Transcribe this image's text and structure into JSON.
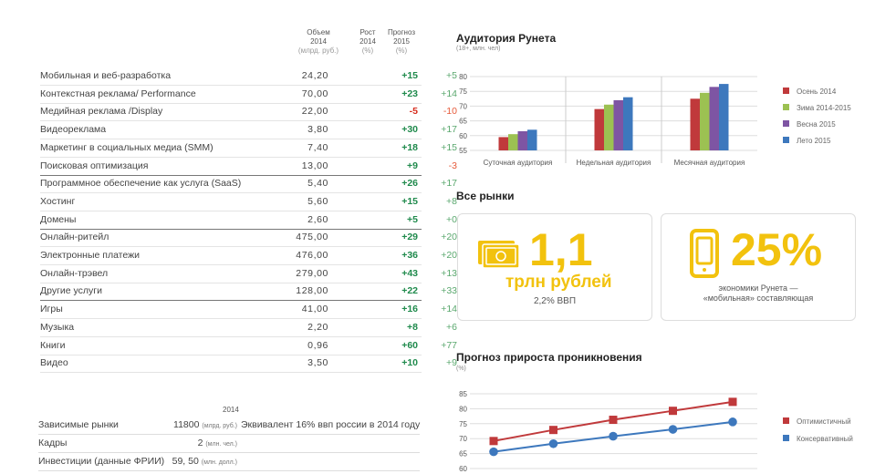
{
  "table": {
    "headers": {
      "volume": [
        "Объем",
        "2014",
        "(млрд. руб.)"
      ],
      "growth": [
        "Рост",
        "2014",
        "(%)"
      ],
      "forecast": [
        "Прогноз",
        "2015",
        "(%)"
      ]
    },
    "rows": [
      {
        "name": "Мобильная и веб-разработка",
        "volume": "24,20",
        "growth": "+15",
        "forecast": "+5",
        "sep": false
      },
      {
        "name": "Контекстная реклама/ Performance",
        "volume": "70,00",
        "growth": "+23",
        "forecast": "+14",
        "sep": false
      },
      {
        "name": "Медийная реклама /Display",
        "volume": "22,00",
        "growth": "-5",
        "forecast": "-10",
        "sep": false
      },
      {
        "name": "Видеореклама",
        "volume": "3,80",
        "growth": "+30",
        "forecast": "+17",
        "sep": false
      },
      {
        "name": "Маркетинг в социальных медиа (SMM)",
        "volume": "7,40",
        "growth": "+18",
        "forecast": "+15",
        "sep": false
      },
      {
        "name": "Поисковая оптимизация",
        "volume": "13,00",
        "growth": "+9",
        "forecast": "-3",
        "sep": true
      },
      {
        "name": "Программное обеспечение как услуга (SaaS)",
        "volume": "5,40",
        "growth": "+26",
        "forecast": "+17",
        "sep": false
      },
      {
        "name": "Хостинг",
        "volume": "5,60",
        "growth": "+15",
        "forecast": "+8",
        "sep": false
      },
      {
        "name": "Домены",
        "volume": "2,60",
        "growth": "+5",
        "forecast": "+0",
        "sep": true
      },
      {
        "name": "Онлайн-ритейл",
        "volume": "475,00",
        "growth": "+29",
        "forecast": "+20",
        "sep": false
      },
      {
        "name": "Электронные платежи",
        "volume": "476,00",
        "growth": "+36",
        "forecast": "+20",
        "sep": false
      },
      {
        "name": "Онлайн-трэвел",
        "volume": "279,00",
        "growth": "+43",
        "forecast": "+13",
        "sep": false
      },
      {
        "name": "Другие услуги",
        "volume": "128,00",
        "growth": "+22",
        "forecast": "+33",
        "sep": true
      },
      {
        "name": "Игры",
        "volume": "41,00",
        "growth": "+16",
        "forecast": "+14",
        "sep": false
      },
      {
        "name": "Музыка",
        "volume": "2,20",
        "growth": "+8",
        "forecast": "+6",
        "sep": false
      },
      {
        "name": "Книги",
        "volume": "0,96",
        "growth": "+60",
        "forecast": "+77",
        "sep": false
      },
      {
        "name": "Видео",
        "volume": "3,50",
        "growth": "+10",
        "forecast": "+9",
        "sep": false
      }
    ]
  },
  "bottom": {
    "year": "2014",
    "rows": [
      {
        "name": "Зависимые рынки",
        "value": "11800",
        "unit": "(млрд. руб.)",
        "note": "Эквивалент 16% ввп россии в 2014 году"
      },
      {
        "name": "Кадры",
        "value": "2",
        "unit": "(млн. чел.)",
        "note": ""
      },
      {
        "name": "Инвестиции (данные ФРИИ)",
        "value": "59, 50",
        "unit": "(млн. долл.)",
        "note": ""
      }
    ]
  },
  "audience": {
    "title": "Аудитория Рунета",
    "subtitle": "(18+, млн. чел)"
  },
  "markets": {
    "title": "Все рынки",
    "card1": {
      "big": "1,1",
      "mid": "трлн рублей",
      "small": "2,2% ВВП",
      "icon": "money-icon"
    },
    "card2": {
      "big": "25%",
      "line1": "экономики Рунета —",
      "line2": "«мобильная» составляющая",
      "icon": "smartphone-icon"
    }
  },
  "penetration": {
    "title": "Прогноз прироста проникновения",
    "subtitle": "(%)"
  },
  "chart_data": [
    {
      "type": "bar",
      "categories": [
        "Суточная аудитория",
        "Недельная аудитория",
        "Месячная аудитория"
      ],
      "ylim": [
        55,
        80
      ],
      "yticks": [
        55,
        60,
        65,
        70,
        75,
        80
      ],
      "grid": true,
      "legend": "right",
      "series": [
        {
          "name": "Осень 2014",
          "color": "#c0393b",
          "values": [
            59.5,
            69,
            72.5
          ]
        },
        {
          "name": "Зима 2014-2015",
          "color": "#9cc152",
          "values": [
            60.5,
            70.5,
            74.5
          ]
        },
        {
          "name": "Весна 2015",
          "color": "#7e55a3",
          "values": [
            61.5,
            72,
            76.5
          ]
        },
        {
          "name": "Лето 2015",
          "color": "#3d78bd",
          "values": [
            62,
            73,
            77.5
          ]
        }
      ]
    },
    {
      "type": "line",
      "x": [
        1,
        2,
        3,
        4,
        5
      ],
      "ylim": [
        60,
        85
      ],
      "yticks": [
        60,
        65,
        70,
        75,
        80,
        85
      ],
      "grid": true,
      "legend": "right",
      "series": [
        {
          "name": "Оптимистичный",
          "color": "#c0393b",
          "values": [
            69.2,
            72.9,
            76.3,
            79.3,
            82.3
          ]
        },
        {
          "name": "Консервативный",
          "color": "#3d78bd",
          "values": [
            65.6,
            68.3,
            70.8,
            73.1,
            75.6
          ]
        }
      ]
    }
  ]
}
